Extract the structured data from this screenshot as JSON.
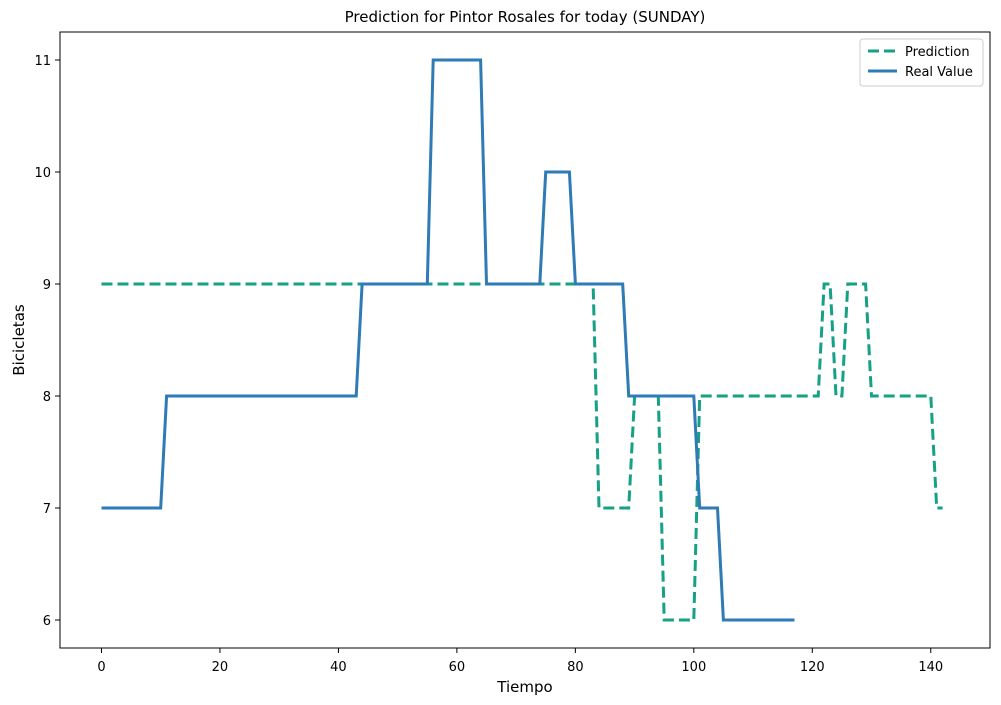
{
  "chart_data": {
    "type": "line",
    "title": "Prediction for Pintor Rosales for today (SUNDAY)",
    "xlabel": "Tiempo",
    "ylabel": "Bicicletas",
    "xlim": [
      -7,
      150
    ],
    "ylim": [
      5.75,
      11.25
    ],
    "xticks": [
      0,
      20,
      40,
      60,
      80,
      100,
      120,
      140
    ],
    "yticks": [
      6,
      7,
      8,
      9,
      10,
      11
    ],
    "grid": false,
    "legend": {
      "position": "top-right"
    },
    "series": [
      {
        "name": "Prediction",
        "color": "#16a085",
        "style": "dashed",
        "points": [
          [
            0,
            9
          ],
          [
            83,
            9
          ],
          [
            84,
            7
          ],
          [
            89,
            7
          ],
          [
            90,
            8
          ],
          [
            94,
            8
          ],
          [
            95,
            6
          ],
          [
            100,
            6
          ],
          [
            101,
            8
          ],
          [
            121,
            8
          ],
          [
            122,
            9
          ],
          [
            123,
            9
          ],
          [
            124,
            8
          ],
          [
            125,
            8
          ],
          [
            126,
            9
          ],
          [
            129,
            9
          ],
          [
            130,
            8
          ],
          [
            140,
            8
          ],
          [
            141,
            7
          ],
          [
            142,
            7
          ]
        ]
      },
      {
        "name": "Real Value",
        "color": "#2e7bb6",
        "style": "solid",
        "points": [
          [
            0,
            7
          ],
          [
            10,
            7
          ],
          [
            11,
            8
          ],
          [
            43,
            8
          ],
          [
            44,
            9
          ],
          [
            55,
            9
          ],
          [
            56,
            11
          ],
          [
            64,
            11
          ],
          [
            65,
            9
          ],
          [
            74,
            9
          ],
          [
            75,
            10
          ],
          [
            79,
            10
          ],
          [
            80,
            9
          ],
          [
            88,
            9
          ],
          [
            89,
            8
          ],
          [
            100,
            8
          ],
          [
            101,
            7
          ],
          [
            104,
            7
          ],
          [
            105,
            6
          ],
          [
            117,
            6
          ]
        ]
      }
    ]
  }
}
